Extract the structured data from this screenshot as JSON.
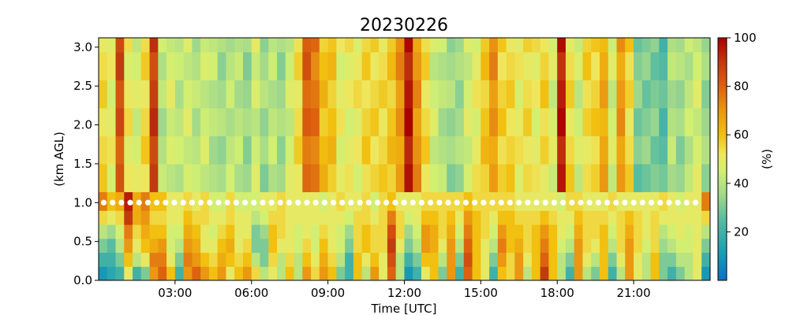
{
  "chart_data": {
    "type": "heatmap",
    "title": "20230226",
    "xlabel": "Time [UTC]",
    "ylabel": "(km AGL)",
    "colorbar_label": "(%)",
    "x_range_hours": [
      0.0,
      24.0
    ],
    "y_range_km": [
      0.0,
      3.12
    ],
    "x_ticks": [
      {
        "value": 3,
        "label": "03:00"
      },
      {
        "value": 6,
        "label": "06:00"
      },
      {
        "value": 9,
        "label": "09:00"
      },
      {
        "value": 12,
        "label": "12:00"
      },
      {
        "value": 15,
        "label": "15:00"
      },
      {
        "value": 18,
        "label": "18:00"
      },
      {
        "value": 21,
        "label": "21:00"
      }
    ],
    "y_ticks": [
      {
        "value": 0.0,
        "label": "0.0"
      },
      {
        "value": 0.5,
        "label": "0.5"
      },
      {
        "value": 1.0,
        "label": "1.0"
      },
      {
        "value": 1.5,
        "label": "1.5"
      },
      {
        "value": 2.0,
        "label": "2.0"
      },
      {
        "value": 2.5,
        "label": "2.5"
      },
      {
        "value": 3.0,
        "label": "3.0"
      }
    ],
    "colorbar_range": [
      0,
      100
    ],
    "colorbar_ticks": [
      {
        "value": 20,
        "label": "20"
      },
      {
        "value": 40,
        "label": "40"
      },
      {
        "value": 60,
        "label": "60"
      },
      {
        "value": 80,
        "label": "80"
      },
      {
        "value": 100,
        "label": "100"
      }
    ],
    "colormap_stops": [
      {
        "value": 0,
        "color": "#0a70c8"
      },
      {
        "value": 12,
        "color": "#1c9fb3"
      },
      {
        "value": 25,
        "color": "#58bca0"
      },
      {
        "value": 35,
        "color": "#9fd88c"
      },
      {
        "value": 45,
        "color": "#d2ef72"
      },
      {
        "value": 52,
        "color": "#eee75e"
      },
      {
        "value": 60,
        "color": "#f1c010"
      },
      {
        "value": 70,
        "color": "#ea9712"
      },
      {
        "value": 80,
        "color": "#dc6210"
      },
      {
        "value": 90,
        "color": "#c23a10"
      },
      {
        "value": 100,
        "color": "#a80000"
      }
    ],
    "time_step_hours": 0.3333,
    "height_levels_km": [
      0.0,
      0.18,
      0.36,
      0.54,
      0.72,
      0.9,
      1.14,
      1.5,
      1.86,
      2.22,
      2.58,
      2.94
    ],
    "low_level_values": [
      [
        10,
        15,
        20,
        50,
        20,
        30,
        70,
        80,
        60,
        20,
        70,
        80,
        70,
        60,
        70,
        50,
        60,
        70,
        55,
        40,
        50,
        40,
        60,
        40,
        70,
        55,
        70,
        60,
        30,
        20,
        60,
        40,
        70,
        50,
        80,
        40,
        10,
        20,
        50,
        60,
        30,
        70,
        20,
        80,
        60,
        50,
        20,
        60,
        55,
        70,
        40,
        60,
        90,
        60,
        40,
        20,
        70,
        40,
        30,
        60,
        20,
        40,
        70,
        50,
        40,
        60,
        30,
        20,
        30,
        40,
        50
      ],
      [
        20,
        20,
        30,
        60,
        40,
        50,
        75,
        75,
        50,
        30,
        75,
        70,
        60,
        55,
        65,
        60,
        55,
        60,
        40,
        30,
        55,
        40,
        55,
        40,
        60,
        50,
        65,
        55,
        40,
        20,
        60,
        50,
        60,
        50,
        85,
        40,
        20,
        30,
        60,
        60,
        40,
        70,
        30,
        85,
        60,
        50,
        30,
        70,
        55,
        70,
        50,
        60,
        80,
        60,
        40,
        30,
        70,
        50,
        40,
        60,
        30,
        50,
        70,
        50,
        40,
        60,
        30,
        30,
        40,
        40,
        50
      ],
      [
        30,
        25,
        40,
        70,
        50,
        60,
        65,
        70,
        45,
        40,
        70,
        65,
        50,
        50,
        60,
        65,
        50,
        55,
        30,
        30,
        60,
        50,
        50,
        45,
        55,
        45,
        60,
        50,
        45,
        30,
        55,
        60,
        55,
        55,
        90,
        50,
        30,
        40,
        70,
        65,
        50,
        70,
        40,
        80,
        60,
        50,
        40,
        75,
        60,
        65,
        55,
        60,
        75,
        60,
        45,
        40,
        70,
        55,
        50,
        60,
        40,
        55,
        70,
        55,
        45,
        55,
        35,
        40,
        45,
        45,
        50
      ],
      [
        40,
        35,
        45,
        75,
        55,
        65,
        60,
        60,
        45,
        45,
        65,
        60,
        50,
        45,
        55,
        60,
        50,
        50,
        30,
        35,
        60,
        55,
        50,
        45,
        50,
        45,
        55,
        50,
        45,
        35,
        55,
        60,
        55,
        55,
        85,
        55,
        35,
        45,
        70,
        65,
        55,
        65,
        45,
        75,
        60,
        55,
        45,
        70,
        60,
        60,
        55,
        60,
        70,
        60,
        50,
        45,
        65,
        55,
        55,
        60,
        45,
        55,
        65,
        55,
        50,
        55,
        40,
        45,
        50,
        45,
        50
      ],
      [
        55,
        50,
        55,
        90,
        65,
        70,
        55,
        55,
        50,
        50,
        60,
        55,
        55,
        50,
        50,
        55,
        50,
        50,
        40,
        45,
        55,
        55,
        50,
        50,
        50,
        50,
        50,
        50,
        50,
        45,
        55,
        55,
        50,
        55,
        75,
        55,
        45,
        50,
        60,
        60,
        55,
        60,
        50,
        70,
        60,
        55,
        50,
        60,
        60,
        55,
        55,
        55,
        60,
        55,
        50,
        50,
        60,
        55,
        55,
        55,
        50,
        55,
        60,
        55,
        50,
        55,
        50,
        50,
        50,
        50,
        50
      ],
      [
        75,
        60,
        65,
        95,
        65,
        75,
        60,
        60,
        50,
        50,
        55,
        50,
        55,
        45,
        45,
        55,
        45,
        45,
        45,
        50,
        50,
        55,
        50,
        50,
        50,
        50,
        45,
        50,
        55,
        50,
        50,
        55,
        45,
        55,
        60,
        50,
        50,
        50,
        55,
        55,
        55,
        55,
        55,
        60,
        55,
        55,
        55,
        55,
        55,
        50,
        50,
        50,
        50,
        50,
        45,
        55,
        55,
        50,
        50,
        50,
        55,
        50,
        50,
        50,
        50,
        50,
        55,
        50,
        45,
        50,
        50
      ]
    ],
    "markers": {
      "style": "white-dot",
      "height_km": 1.0,
      "count": 68,
      "start_hour": 0.2,
      "step_hours": 0.3467
    }
  }
}
